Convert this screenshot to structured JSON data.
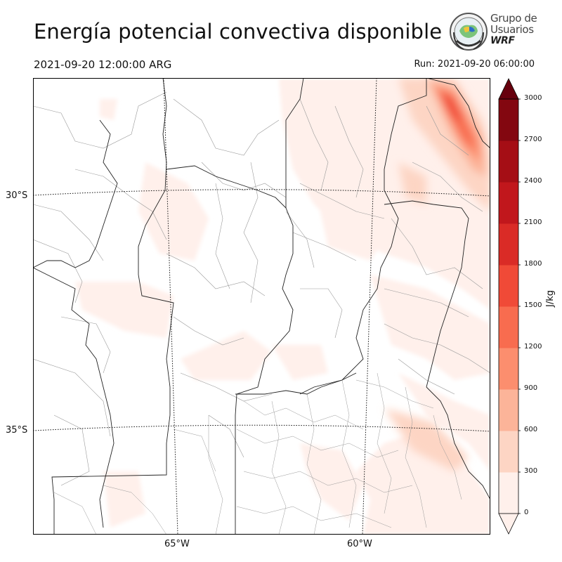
{
  "header": {
    "title": "Energía potencial convectiva disponible",
    "valid_time": "2021-09-20 12:00:00 ARG",
    "run_time": "Run: 2021-09-20 06:00:00"
  },
  "logo": {
    "line1": "Grupo de",
    "line2": "Usuarios",
    "line3": "WRF"
  },
  "map": {
    "lat_labels": [
      "30°S",
      "35°S"
    ],
    "lon_labels": [
      "65°W",
      "60°W"
    ]
  },
  "colorbar": {
    "units": "J/kg",
    "levels": [
      0,
      300,
      600,
      900,
      1200,
      1500,
      1800,
      2100,
      2400,
      2700,
      3000
    ],
    "tick_labels": [
      "0",
      "300",
      "600",
      "900",
      "1200",
      "1500",
      "1800",
      "2100",
      "2400",
      "2700",
      "3000"
    ],
    "colors": [
      "#fff0eb",
      "#fdd5c4",
      "#fcb499",
      "#fc8e6e",
      "#f86c4f",
      "#f04a37",
      "#da2b26",
      "#c1171c",
      "#a50e15",
      "#830710",
      "#67000d"
    ]
  }
}
